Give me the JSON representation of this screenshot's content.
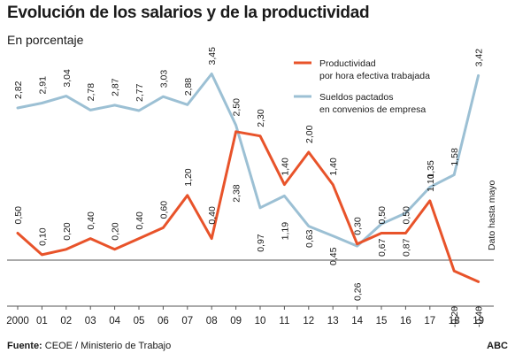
{
  "header": {
    "title": "Evolución de los salarios y de la productividad",
    "subtitle": "En porcentaje"
  },
  "footer": {
    "source_label": "Fuente:",
    "source_text": " CEOE / Ministerio de Trabajo",
    "brand": "ABC"
  },
  "annotation": "Dato hasta mayo",
  "colors": {
    "productividad": "#e8532a",
    "sueldos": "#9cc0d4",
    "axis": "#555555"
  },
  "chart_data": {
    "type": "line",
    "title": "Evolución de los salarios y de la productividad",
    "subtitle": "En porcentaje",
    "categories": [
      "2000",
      "01",
      "02",
      "03",
      "04",
      "05",
      "06",
      "07",
      "08",
      "09",
      "10",
      "11",
      "12",
      "13",
      "14",
      "15",
      "16",
      "17",
      "18",
      "19"
    ],
    "series": [
      {
        "name": "Productividad por hora efectiva trabajada",
        "legend_lines": [
          "Productividad",
          "por hora efectiva trabajada"
        ],
        "color": "#e8532a",
        "values": [
          0.5,
          0.1,
          0.2,
          0.4,
          0.2,
          0.4,
          0.6,
          1.2,
          0.4,
          2.38,
          2.3,
          1.4,
          2.0,
          1.4,
          0.3,
          0.5,
          0.5,
          1.1,
          -0.2,
          -0.4
        ],
        "labels": [
          "0,50",
          "0,10",
          "0,20",
          "0,40",
          "0,20",
          "0,40",
          "0,60",
          "1,20",
          "0,40",
          "2,38",
          "2,30",
          "1,40",
          "2,00",
          "1,40",
          "0,30",
          "0,50",
          "0,50",
          "1,10",
          "-0,20",
          "-0,40"
        ]
      },
      {
        "name": "Sueldos pactados en convenios de empresa",
        "legend_lines": [
          "Sueldos pactados",
          "en convenios de empresa"
        ],
        "color": "#9cc0d4",
        "values": [
          2.82,
          2.91,
          3.04,
          2.78,
          2.87,
          2.77,
          3.03,
          2.88,
          3.45,
          2.5,
          0.97,
          1.19,
          0.63,
          0.45,
          0.26,
          0.67,
          0.87,
          1.35,
          1.58,
          3.42
        ],
        "labels": [
          "2,82",
          "2,91",
          "3,04",
          "2,78",
          "2,87",
          "2,77",
          "3,03",
          "2,88",
          "3,45",
          "2,50",
          "0,97",
          "1,19",
          "0,63",
          "0,45",
          "0,26",
          "0,67",
          "0,87",
          "1,35",
          "1,58",
          "3,42"
        ]
      }
    ],
    "grid": false,
    "legend_position": "top-right"
  }
}
